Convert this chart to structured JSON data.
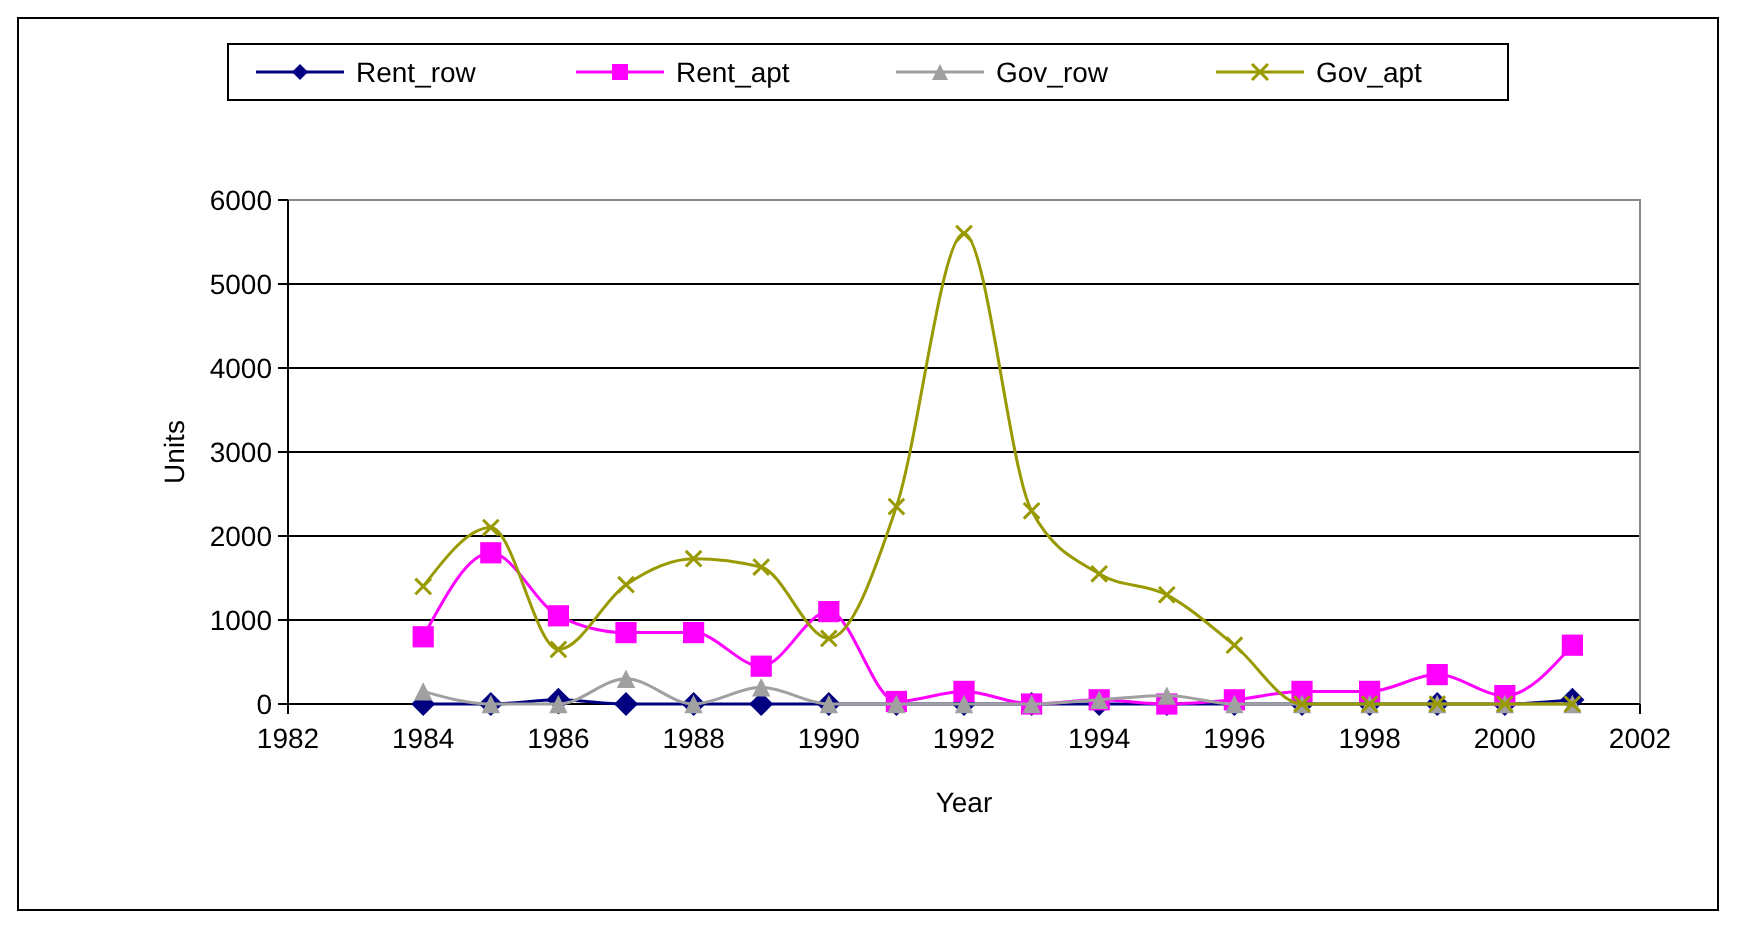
{
  "chart_data": {
    "type": "line",
    "xlabel": "Year",
    "ylabel": "Units",
    "x": [
      1984,
      1985,
      1986,
      1987,
      1988,
      1989,
      1990,
      1991,
      1992,
      1993,
      1994,
      1995,
      1996,
      1997,
      1998,
      1999,
      2000,
      2001
    ],
    "series": [
      {
        "name": "Rent_row",
        "color": "#000080",
        "marker": "diamond",
        "values": [
          0,
          0,
          50,
          0,
          0,
          0,
          0,
          0,
          0,
          0,
          0,
          0,
          0,
          0,
          0,
          0,
          0,
          50
        ]
      },
      {
        "name": "Rent_apt",
        "color": "#ff00ff",
        "marker": "square",
        "values": [
          800,
          1800,
          1050,
          850,
          850,
          450,
          1100,
          30,
          150,
          0,
          50,
          0,
          50,
          150,
          150,
          350,
          100,
          700
        ]
      },
      {
        "name": "Gov_row",
        "color": "#a0a0a0",
        "marker": "triangle",
        "values": [
          150,
          0,
          0,
          300,
          0,
          200,
          0,
          0,
          0,
          0,
          50,
          100,
          0,
          0,
          0,
          0,
          0,
          0
        ]
      },
      {
        "name": "Gov_apt",
        "color": "#999900",
        "marker": "cross",
        "values": [
          1400,
          2100,
          650,
          1420,
          1730,
          1630,
          780,
          2350,
          5600,
          2300,
          1550,
          1300,
          700,
          0,
          0,
          0,
          0,
          0
        ]
      }
    ],
    "xlim": [
      1982,
      2002
    ],
    "xticks": [
      1982,
      1984,
      1986,
      1988,
      1990,
      1992,
      1994,
      1996,
      1998,
      2000,
      2002
    ],
    "ylim": [
      0,
      6000
    ],
    "yticks": [
      0,
      1000,
      2000,
      3000,
      4000,
      5000,
      6000
    ],
    "grid": "y",
    "legend": "top"
  }
}
